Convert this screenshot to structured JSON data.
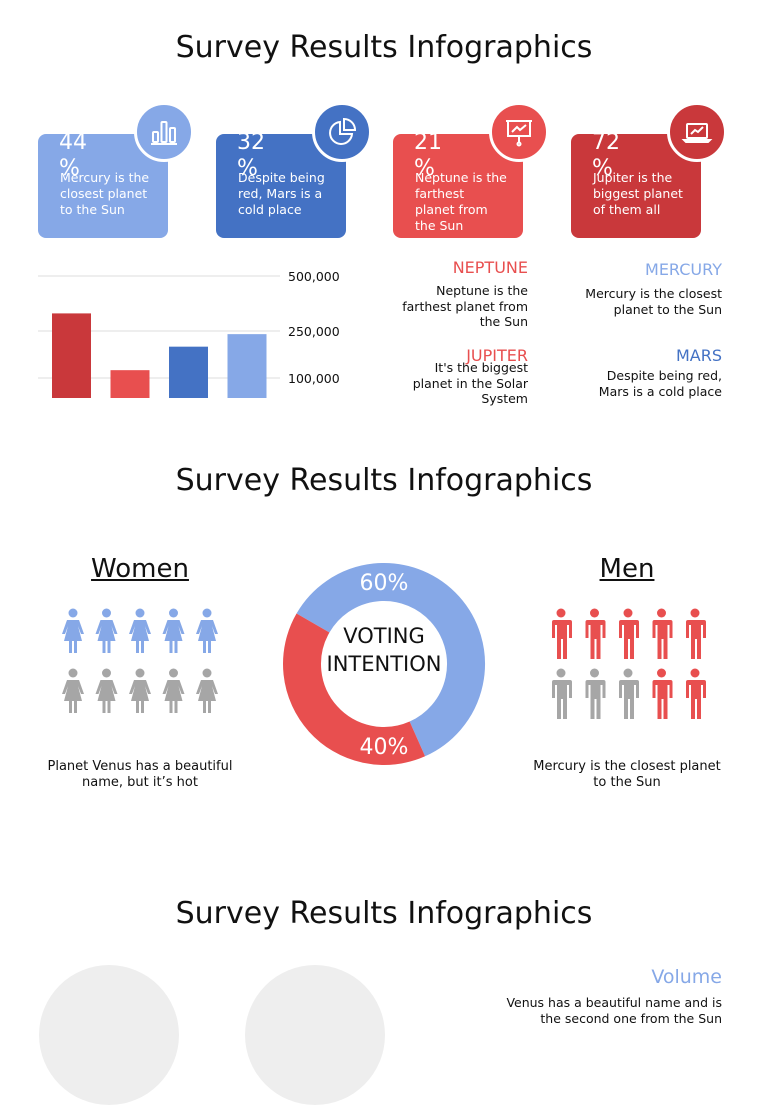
{
  "sections": [
    {
      "title": "Survey Results Infographics"
    },
    {
      "title": "Survey Results Infographics"
    },
    {
      "title": "Survey Results Infographics"
    }
  ],
  "stats": [
    {
      "value": "44%",
      "text": "Mercury is the closest planet to the Sun",
      "color": "#86a8e7",
      "icon": "bar-chart-icon"
    },
    {
      "value": "32%",
      "text": "Despite being red, Mars is a cold place",
      "color": "#4472c4",
      "icon": "pie-chart-icon"
    },
    {
      "value": "21%",
      "text": "Neptune is the farthest planet from the Sun",
      "color": "#e84f4f",
      "icon": "presentation-icon"
    },
    {
      "value": "72%",
      "text": "Jupiter is the biggest planet of them all",
      "color": "#c9383b",
      "icon": "laptop-chart-icon"
    }
  ],
  "chart_data": {
    "type": "bar",
    "categories": [
      "",
      "",
      "",
      ""
    ],
    "values": [
      330000,
      125000,
      200000,
      240000
    ],
    "colors": [
      "#c9383b",
      "#e84f4f",
      "#4472c4",
      "#86a8e7"
    ],
    "title": "",
    "xlabel": "",
    "ylabel": "",
    "yticks": [
      "500,000",
      "250,000",
      "100,000"
    ],
    "ylim": [
      0,
      500000
    ],
    "grid": true
  },
  "planets": [
    {
      "name": "NEPTUNE",
      "text": "Neptune is the farthest planet from the Sun",
      "color": "#e84f4f"
    },
    {
      "name": "MERCURY",
      "text": "Mercury is the closest planet to the Sun",
      "color": "#86a8e7"
    },
    {
      "name": "JUPITER",
      "text": "It's the biggest planet in the Solar System",
      "color": "#e84f4f"
    },
    {
      "name": "MARS",
      "text": "Despite being red, Mars is a cold place",
      "color": "#4472c4"
    }
  ],
  "women": {
    "title": "Women",
    "text": "Planet Venus has a beautiful name, but it’s hot",
    "highlighted": 5,
    "total": 10,
    "color": "#86a8e7"
  },
  "men": {
    "title": "Men",
    "text": "Mercury is the closest planet to the Sun",
    "highlighted": 7,
    "total": 10,
    "color": "#e84f4f"
  },
  "donut": {
    "label": "VOTING INTENTION",
    "top_value": "60%",
    "bottom_value": "40%",
    "top_fraction": 0.6,
    "top_color": "#86a8e7",
    "bottom_color": "#e84f4f"
  },
  "volume": {
    "title": "Volume",
    "text": "Venus has a beautiful name and is the second one from the Sun",
    "color": "#86a8e7"
  },
  "inactive_color": "#a6a6a6"
}
